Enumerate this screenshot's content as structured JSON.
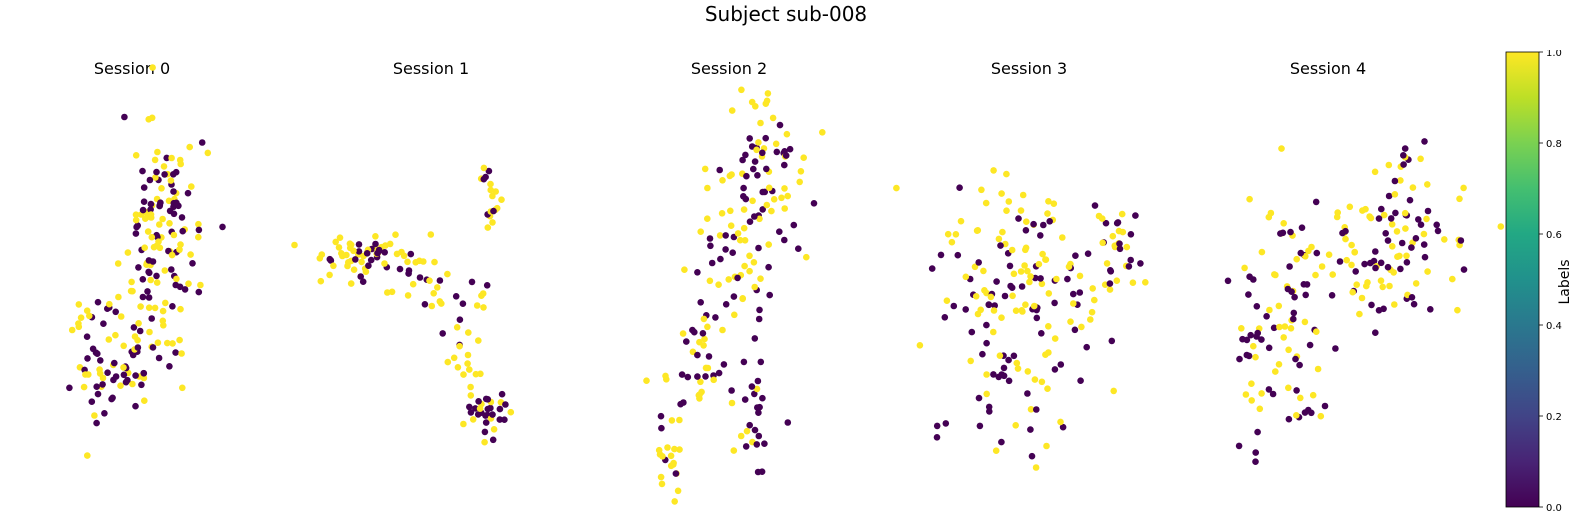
{
  "figure": {
    "title": "Subject sub-008"
  },
  "colorbar": {
    "label": "Labels",
    "colormap": "viridis",
    "range": [
      0.0,
      1.0
    ],
    "ticks": [
      "0.0",
      "0.2",
      "0.4",
      "0.6",
      "0.8",
      "1.0"
    ]
  },
  "colors": {
    "label_0": "#440154",
    "label_1": "#fde725"
  },
  "chart_data": [
    {
      "type": "scatter",
      "title": "Session 0",
      "x": [],
      "y": [],
      "labels": []
    },
    {
      "type": "scatter",
      "title": "Session 1",
      "x": [],
      "y": [],
      "labels": []
    },
    {
      "type": "scatter",
      "title": "Session 2",
      "x": [],
      "y": [],
      "labels": []
    },
    {
      "type": "scatter",
      "title": "Session 3",
      "x": [],
      "y": [],
      "labels": []
    },
    {
      "type": "scatter",
      "title": "Session 4",
      "x": [],
      "y": [],
      "labels": []
    }
  ]
}
